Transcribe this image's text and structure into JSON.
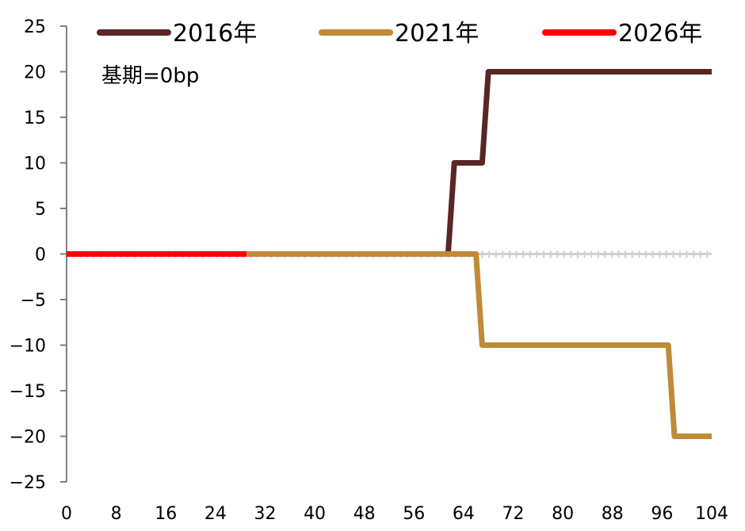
{
  "chart_data": {
    "type": "line",
    "x_ticks": [
      0,
      8,
      16,
      24,
      32,
      40,
      48,
      56,
      64,
      72,
      80,
      88,
      96,
      104
    ],
    "y_ticks": [
      25,
      20,
      15,
      10,
      5,
      0,
      -5,
      -10,
      -15,
      -20,
      -25
    ],
    "y_tick_labels": [
      "25",
      "20",
      "15",
      "10",
      "5",
      "0",
      "−5",
      "−10",
      "−15",
      "−20",
      "−25"
    ],
    "xlim": [
      0,
      104
    ],
    "ylim": [
      -25,
      25
    ],
    "grid": false,
    "legend_position": "top",
    "annotation": "基期=0bp",
    "series": [
      {
        "name": "2016年",
        "color": "#5b2525",
        "points": [
          [
            0,
            0
          ],
          [
            61.5,
            0
          ],
          [
            62.5,
            10
          ],
          [
            67,
            10
          ],
          [
            68,
            20
          ],
          [
            104,
            20
          ]
        ]
      },
      {
        "name": "2021年",
        "color": "#c08a37",
        "points": [
          [
            0,
            0
          ],
          [
            66,
            0
          ],
          [
            67,
            -10
          ],
          [
            97,
            -10
          ],
          [
            98,
            -20
          ],
          [
            104,
            -20
          ]
        ]
      },
      {
        "name": "2026年",
        "color": "#ff0000",
        "points": [
          [
            0,
            0
          ],
          [
            29,
            0
          ]
        ]
      }
    ]
  }
}
